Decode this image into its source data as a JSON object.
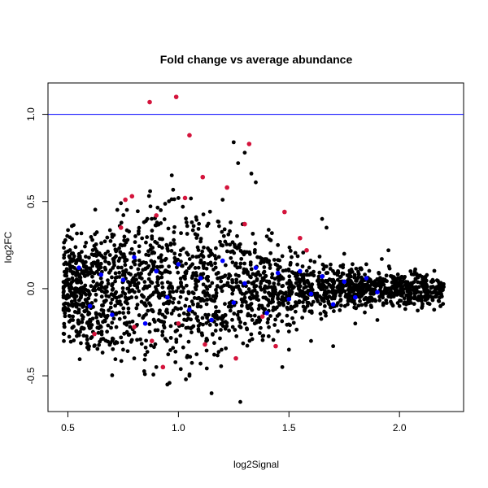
{
  "chart_data": {
    "type": "scatter",
    "title": "Fold change vs average abundance",
    "xlabel": "log2Signal",
    "ylabel": "log2FC",
    "xlim": [
      0.41,
      2.29
    ],
    "ylim": [
      -0.705,
      1.18
    ],
    "x_ticks": [
      0.5,
      1.0,
      1.5,
      2.0
    ],
    "x_tick_labels": [
      "0.5",
      "1.0",
      "1.5",
      "2.0"
    ],
    "y_ticks": [
      -0.5,
      0.0,
      0.5,
      1.0
    ],
    "y_tick_labels": [
      "-0.5",
      "0.0",
      "0.5",
      "1.0"
    ],
    "grid": false,
    "legend": "none",
    "reference_line": {
      "y": 1.0,
      "color": "#0000ff"
    },
    "colors": {
      "background": "black",
      "highlight_blue": "#0000ff",
      "highlight_red": "#d4143c",
      "text": "#000000"
    },
    "series": [
      {
        "color": "#000000",
        "points": [
          [
            0.48,
            -0.04
          ],
          [
            0.5,
            0.02
          ],
          [
            0.52,
            0.06
          ],
          [
            0.55,
            -0.12
          ],
          [
            0.57,
            0.1
          ],
          [
            0.6,
            -0.18
          ],
          [
            0.62,
            0.15
          ],
          [
            0.65,
            -0.22
          ],
          [
            0.67,
            0.2
          ],
          [
            0.7,
            -0.3
          ],
          [
            0.72,
            0.22
          ],
          [
            0.75,
            -0.35
          ],
          [
            0.77,
            0.28
          ],
          [
            0.8,
            -0.4
          ],
          [
            0.82,
            0.33
          ],
          [
            0.85,
            -0.38
          ],
          [
            0.88,
            0.3
          ],
          [
            0.9,
            -0.45
          ],
          [
            0.92,
            0.45
          ],
          [
            0.95,
            -0.55
          ],
          [
            0.97,
            0.65
          ],
          [
            1.0,
            0.52
          ],
          [
            1.02,
            0.47
          ],
          [
            1.05,
            -0.5
          ],
          [
            1.08,
            0.41
          ],
          [
            1.1,
            -0.43
          ],
          [
            1.13,
            0.36
          ],
          [
            1.15,
            -0.6
          ],
          [
            1.2,
            0.51
          ],
          [
            1.22,
            0.58
          ],
          [
            1.25,
            0.84
          ],
          [
            1.27,
            0.72
          ],
          [
            1.3,
            0.78
          ],
          [
            1.33,
            0.66
          ],
          [
            1.35,
            0.61
          ],
          [
            1.28,
            -0.65
          ],
          [
            1.4,
            0.3
          ],
          [
            1.45,
            0.25
          ],
          [
            1.47,
            -0.45
          ],
          [
            1.5,
            -0.35
          ],
          [
            1.55,
            0.29
          ],
          [
            1.6,
            -0.3
          ],
          [
            1.65,
            0.4
          ],
          [
            1.67,
            0.35
          ],
          [
            1.7,
            -0.33
          ],
          [
            1.75,
            0.2
          ],
          [
            1.8,
            -0.2
          ],
          [
            1.85,
            0.14
          ],
          [
            1.9,
            -0.18
          ],
          [
            1.92,
            0.17
          ],
          [
            1.95,
            0.22
          ],
          [
            2.0,
            -0.1
          ],
          [
            2.05,
            0.1
          ],
          [
            2.1,
            -0.07
          ],
          [
            2.15,
            0.05
          ],
          [
            2.2,
            0.01
          ]
        ]
      },
      {
        "color": "#0000ff",
        "points": [
          [
            0.55,
            0.12
          ],
          [
            0.6,
            -0.1
          ],
          [
            0.65,
            0.08
          ],
          [
            0.7,
            -0.15
          ],
          [
            0.75,
            0.05
          ],
          [
            0.8,
            0.18
          ],
          [
            0.85,
            -0.2
          ],
          [
            0.9,
            0.1
          ],
          [
            0.95,
            -0.05
          ],
          [
            1.0,
            0.14
          ],
          [
            1.05,
            -0.12
          ],
          [
            1.1,
            0.06
          ],
          [
            1.15,
            -0.18
          ],
          [
            1.2,
            0.16
          ],
          [
            1.25,
            -0.08
          ],
          [
            1.3,
            0.03
          ],
          [
            1.35,
            0.12
          ],
          [
            1.4,
            -0.14
          ],
          [
            1.45,
            0.09
          ],
          [
            1.5,
            -0.06
          ],
          [
            1.55,
            0.1
          ],
          [
            1.6,
            -0.03
          ],
          [
            1.65,
            0.07
          ],
          [
            1.7,
            -0.09
          ],
          [
            1.75,
            0.04
          ],
          [
            1.8,
            -0.05
          ],
          [
            1.85,
            0.06
          ],
          [
            1.9,
            -0.02
          ]
        ]
      },
      {
        "color": "#d4143c",
        "points": [
          [
            0.87,
            1.07
          ],
          [
            0.99,
            1.1
          ],
          [
            1.05,
            0.88
          ],
          [
            1.32,
            0.83
          ],
          [
            1.11,
            0.64
          ],
          [
            1.22,
            0.58
          ],
          [
            0.76,
            0.51
          ],
          [
            0.79,
            0.53
          ],
          [
            1.03,
            0.52
          ],
          [
            1.48,
            0.44
          ],
          [
            0.74,
            0.35
          ],
          [
            0.9,
            0.42
          ],
          [
            1.3,
            0.37
          ],
          [
            1.55,
            0.29
          ],
          [
            1.58,
            0.22
          ],
          [
            0.62,
            -0.26
          ],
          [
            0.88,
            -0.3
          ],
          [
            0.93,
            -0.45
          ],
          [
            1.12,
            -0.32
          ],
          [
            1.26,
            -0.4
          ],
          [
            1.44,
            -0.33
          ],
          [
            0.8,
            -0.22
          ],
          [
            1.0,
            -0.2
          ],
          [
            1.38,
            -0.16
          ]
        ]
      }
    ]
  }
}
